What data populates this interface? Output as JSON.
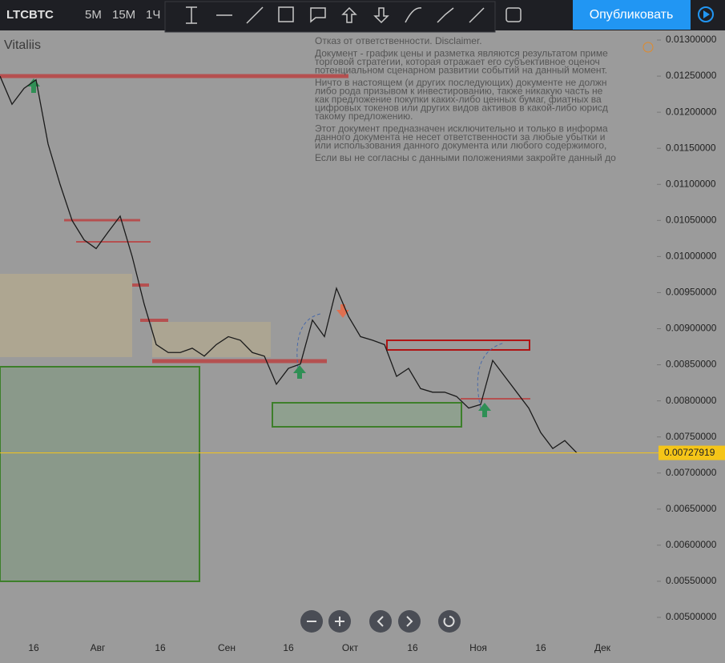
{
  "header": {
    "symbol": "LTCBTC",
    "intervals": [
      "5М",
      "15М",
      "1Ч"
    ],
    "publish": "Опубликовать"
  },
  "author": "Vitaliis",
  "disclaimer": [
    [
      "Отказ от ответственности. Disclaimer."
    ],
    [
      "Документ - график цены и разметка являются результатом приме",
      "торговой стратегии, которая отражает его субъективное оценоч",
      "потенциальном сценарном развитии событий на данный момент."
    ],
    [
      "Ничто в настоящем (и других последующих) документе не должн",
      "либо рода призывом к инвестированию, также никакую часть не",
      "как предложение покупки каких-либо ценных бумаг, фиатных ва",
      "цифровых токенов или других видов активов в какой-либо юрисд",
      "такому предложению."
    ],
    [
      "Этот документ предназначен исключительно и только в информа",
      "данного документа не несет ответственности за любые убытки и",
      "или использования данного документа или любого содержимого,"
    ],
    [
      "Если вы не согласны с данными положениями закройте данный до"
    ]
  ],
  "chart_data": {
    "type": "line",
    "color": "#1a1a1a",
    "values": [
      0.0125,
      0.01211,
      0.01233,
      0.01245,
      0.01156,
      0.011,
      0.0105,
      0.01023,
      0.01011,
      0.01034,
      0.01056,
      0.01,
      0.00934,
      0.00878,
      0.00867,
      0.00867,
      0.00873,
      0.00862,
      0.00878,
      0.00889,
      0.00884,
      0.00867,
      0.00862,
      0.00823,
      0.00845,
      0.00851,
      0.00912,
      0.00889,
      0.00956,
      0.00917,
      0.00889,
      0.00884,
      0.00878,
      0.00834,
      0.00845,
      0.00817,
      0.00812,
      0.00812,
      0.00806,
      0.0079,
      0.00795,
      0.00856,
      0.00834,
      0.00812,
      0.0079,
      0.00756,
      0.00734,
      0.00745,
      0.00727919
    ],
    "last_price": 0.00727919,
    "ylim": [
      0.005,
      0.013
    ],
    "yticks": [
      {
        "value": 0.013,
        "label": "0.01300000"
      },
      {
        "value": 0.0125,
        "label": "0.01250000"
      },
      {
        "value": 0.012,
        "label": "0.01200000"
      },
      {
        "value": 0.0115,
        "label": "0.01150000"
      },
      {
        "value": 0.011,
        "label": "0.01100000"
      },
      {
        "value": 0.0105,
        "label": "0.01050000"
      },
      {
        "value": 0.01,
        "label": "0.01000000"
      },
      {
        "value": 0.0095,
        "label": "0.00950000"
      },
      {
        "value": 0.009,
        "label": "0.00900000"
      },
      {
        "value": 0.0085,
        "label": "0.00850000"
      },
      {
        "value": 0.008,
        "label": "0.00800000"
      },
      {
        "value": 0.0075,
        "label": "0.00750000"
      },
      {
        "value": 0.007,
        "label": "0.00700000"
      },
      {
        "value": 0.0065,
        "label": "0.00650000"
      },
      {
        "value": 0.006,
        "label": "0.00600000"
      },
      {
        "value": 0.0055,
        "label": "0.00550000"
      },
      {
        "value": 0.005,
        "label": "0.00500000"
      }
    ],
    "xtick_labels": [
      "16",
      "Авг",
      "16",
      "Сен",
      "16",
      "Окт",
      "16",
      "Ноя",
      "16",
      "Дек"
    ]
  }
}
